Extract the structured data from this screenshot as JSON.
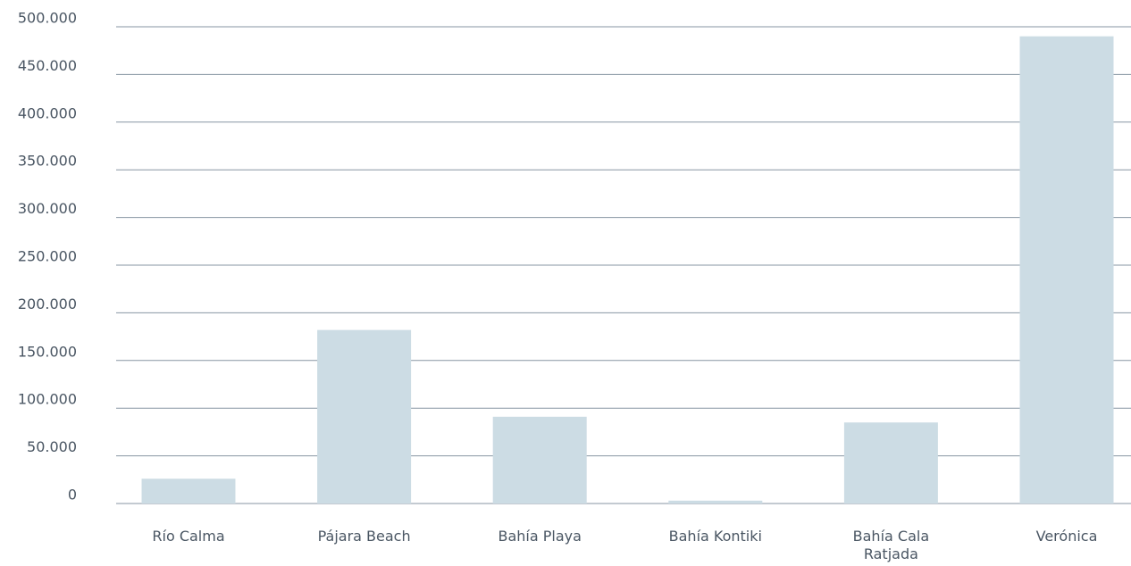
{
  "chart_data": {
    "type": "bar",
    "categories": [
      "Río Calma",
      "Pájara Beach",
      "Bahía Playa",
      "Bahía Kontiki",
      "Bahía Cala Ratjada",
      "Verónica"
    ],
    "values": [
      26000,
      182000,
      91000,
      3000,
      85000,
      490000
    ],
    "color": "#ccdce4",
    "ylim": [
      0,
      500000
    ],
    "yticks": [
      0,
      {
        "value": 50000,
        "label": "50.000"
      },
      {
        "value": 100000,
        "label": "100.000"
      },
      {
        "value": 150000,
        "label": "150.000"
      },
      {
        "value": 200000,
        "label": "200.000"
      },
      {
        "value": 250000,
        "label": "250.000"
      },
      {
        "value": 300000,
        "label": "300.000"
      },
      {
        "value": 350000,
        "label": "350.000"
      },
      {
        "value": 400000,
        "label": "400.000"
      },
      {
        "value": 450000,
        "label": "450.000"
      },
      {
        "value": 500000,
        "label": "500.000"
      }
    ],
    "grid": true
  }
}
